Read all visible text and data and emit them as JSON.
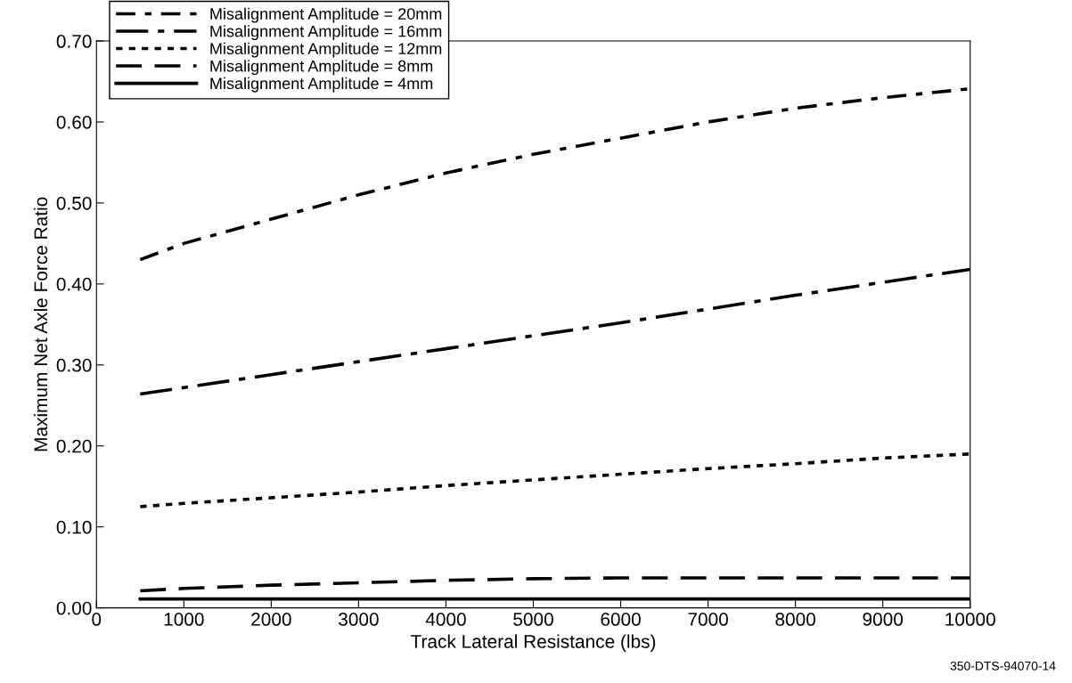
{
  "chart_data": {
    "type": "line",
    "xlabel": "Track Lateral Resistance (lbs)",
    "ylabel": "Maximum Net Axle Force Ratio",
    "annotations": [
      "350-DTS-94070-14"
    ],
    "x": [
      500,
      1000,
      2000,
      3000,
      4000,
      5000,
      6000,
      7000,
      8000,
      9000,
      10000
    ],
    "series": [
      {
        "name": "Misalignment Amplitude = 20mm",
        "color": "#000000",
        "line_style": "dashdot",
        "values": [
          0.43,
          0.45,
          0.48,
          0.51,
          0.537,
          0.56,
          0.58,
          0.6,
          0.617,
          0.63,
          0.641
        ]
      },
      {
        "name": "Misalignment Amplitude = 16mm",
        "color": "#000000",
        "line_style": "dashdotlong",
        "values": [
          0.264,
          0.272,
          0.288,
          0.304,
          0.32,
          0.336,
          0.352,
          0.369,
          0.386,
          0.402,
          0.418
        ]
      },
      {
        "name": "Misalignment Amplitude = 12mm",
        "color": "#000000",
        "line_style": "dotted",
        "values": [
          0.125,
          0.129,
          0.136,
          0.143,
          0.151,
          0.158,
          0.165,
          0.172,
          0.178,
          0.185,
          0.19
        ]
      },
      {
        "name": "Misalignment Amplitude = 8mm",
        "color": "#000000",
        "line_style": "dashed",
        "values": [
          0.021,
          0.024,
          0.028,
          0.031,
          0.034,
          0.036,
          0.037,
          0.037,
          0.037,
          0.037,
          0.037
        ]
      },
      {
        "name": "Misalignment Amplitude = 4mm",
        "color": "#000000",
        "line_style": "solid",
        "values": [
          0.011,
          0.011,
          0.011,
          0.011,
          0.011,
          0.011,
          0.011,
          0.011,
          0.011,
          0.011,
          0.011
        ]
      }
    ],
    "xlim": [
      0,
      10000
    ],
    "xticks": [
      0,
      1000,
      2000,
      3000,
      4000,
      5000,
      6000,
      7000,
      8000,
      9000,
      10000
    ],
    "ylim": [
      0,
      0.7
    ],
    "yticks": [
      {
        "value": 0,
        "label": "0.00"
      },
      {
        "value": 0.1,
        "label": "0.10"
      },
      {
        "value": 0.2,
        "label": "0.20"
      },
      {
        "value": 0.3,
        "label": "0.30"
      },
      {
        "value": 0.4,
        "label": "0.40"
      },
      {
        "value": 0.5,
        "label": "0.50"
      },
      {
        "value": 0.6,
        "label": "0.60"
      },
      {
        "value": 0.7,
        "label": "0.70"
      }
    ],
    "grid": false,
    "legend": "top left",
    "marker": "none"
  }
}
